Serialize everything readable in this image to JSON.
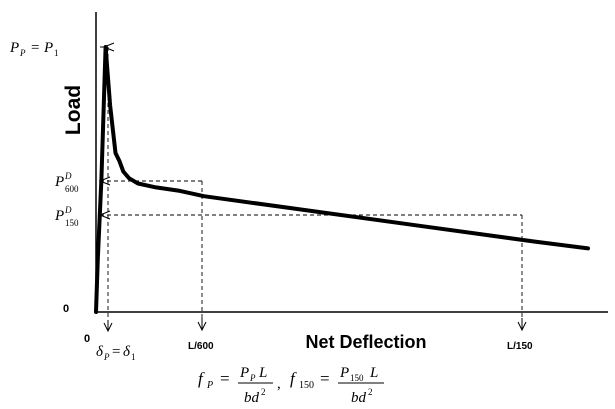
{
  "chart_data": {
    "type": "line",
    "xlabel": "Net Deflection",
    "ylabel": "Load",
    "y_zero_label": "0",
    "x_zero_label": "0",
    "points": [
      {
        "x": 0,
        "y": 0
      },
      {
        "x": 0.6,
        "y": 0.2
      },
      {
        "x": 1.8,
        "y": 0.5
      },
      {
        "x": 3.2,
        "y": 1.0
      },
      {
        "x": 4.7,
        "y": 0.78
      },
      {
        "x": 6.5,
        "y": 0.6
      },
      {
        "x": 7.8,
        "y": 0.57
      },
      {
        "x": 9.1,
        "y": 0.53
      },
      {
        "x": 11,
        "y": 0.505
      },
      {
        "x": 14,
        "y": 0.485
      },
      {
        "x": 20,
        "y": 0.47
      },
      {
        "x": 28,
        "y": 0.457
      },
      {
        "x": 36,
        "y": 0.437
      },
      {
        "x": 110,
        "y": 0.322
      },
      {
        "x": 146,
        "y": 0.266
      },
      {
        "x": 164,
        "y": 0.24
      }
    ],
    "reference_points": [
      {
        "name": "peak",
        "x": 3.2,
        "y": 1.0,
        "y_label": "P_P = P_1",
        "x_label": "δ_P = δ_1"
      },
      {
        "name": "L/600",
        "x": 32,
        "y": 0.45,
        "y_label": "P^D_600",
        "x_label": "L/600"
      },
      {
        "name": "L/150",
        "x": 128,
        "y": 0.295,
        "y_label": "P^D_150",
        "x_label": "L/150"
      }
    ],
    "formula": "f_P = P_P L / bd², f_150 = P_150 L / bd²"
  },
  "labels": {
    "y_axis": "Load",
    "x_axis": "Net Deflection",
    "zero_y": "0",
    "zero_x": "0",
    "tick_l600": "L/600",
    "tick_l150": "L/150"
  }
}
